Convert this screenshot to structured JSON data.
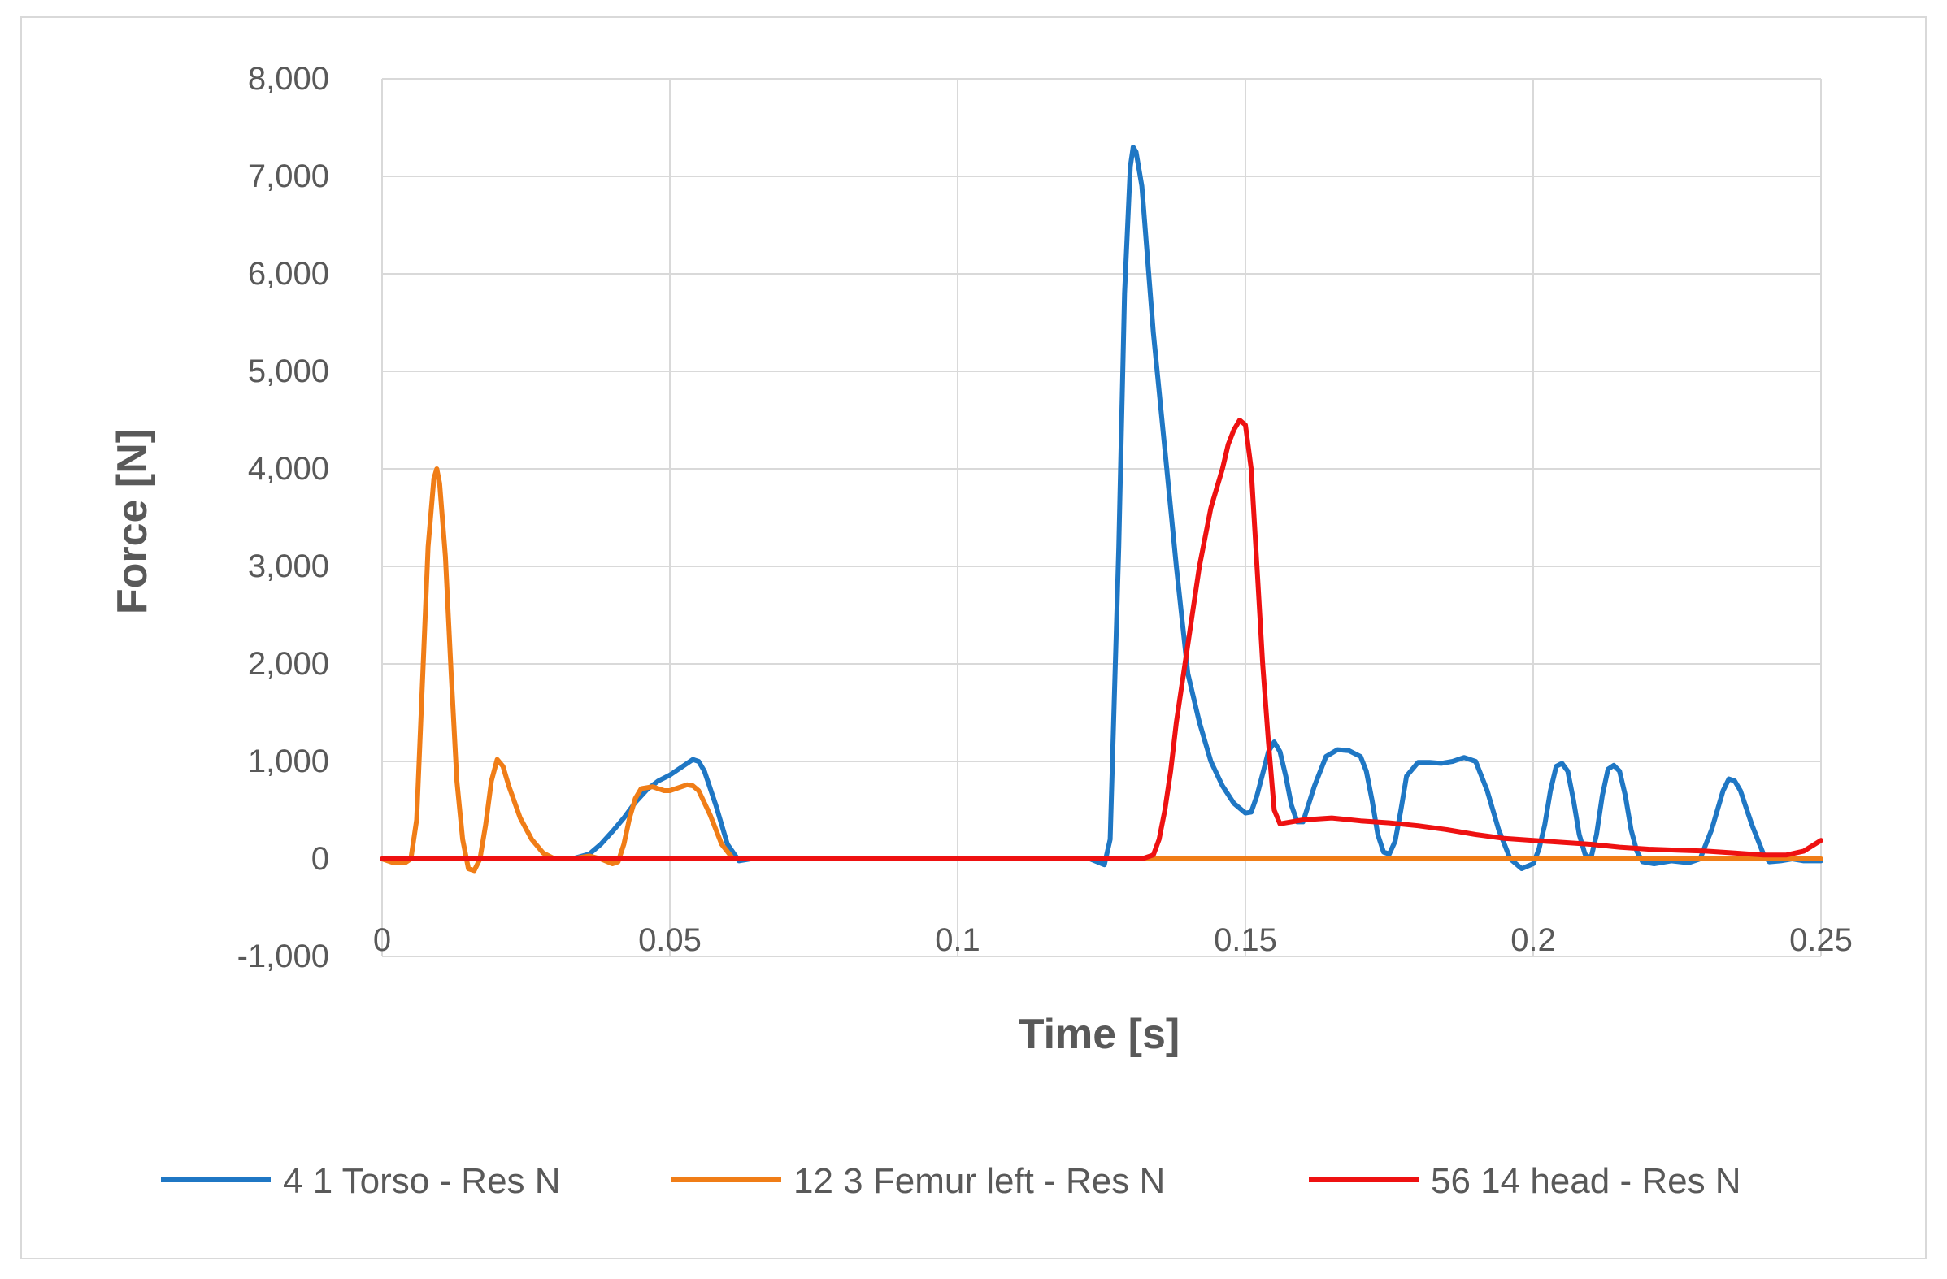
{
  "chart_data": {
    "type": "line",
    "xlabel": "Time [s]",
    "ylabel": "Force [N]",
    "xlim": [
      0,
      0.25
    ],
    "ylim": [
      -1000,
      8000
    ],
    "x_ticks": [
      0,
      0.05,
      0.1,
      0.15,
      0.2,
      0.25
    ],
    "x_tick_labels": [
      "0",
      "0.05",
      "0.1",
      "0.15",
      "0.2",
      "0.25"
    ],
    "y_ticks": [
      -1000,
      0,
      1000,
      2000,
      3000,
      4000,
      5000,
      6000,
      7000,
      8000
    ],
    "y_tick_labels": [
      "-1,000",
      "0",
      "1,000",
      "2,000",
      "3,000",
      "4,000",
      "5,000",
      "6,000",
      "7,000",
      "8,000"
    ],
    "grid": true,
    "legend_position": "bottom",
    "series": [
      {
        "name": "4 1 Torso - Res N",
        "color": "#1f77c4",
        "points": [
          [
            0,
            0
          ],
          [
            0.033,
            0
          ],
          [
            0.036,
            50
          ],
          [
            0.038,
            150
          ],
          [
            0.04,
            280
          ],
          [
            0.042,
            420
          ],
          [
            0.044,
            580
          ],
          [
            0.046,
            710
          ],
          [
            0.048,
            800
          ],
          [
            0.05,
            860
          ],
          [
            0.052,
            940
          ],
          [
            0.054,
            1020
          ],
          [
            0.055,
            1000
          ],
          [
            0.056,
            900
          ],
          [
            0.058,
            550
          ],
          [
            0.06,
            150
          ],
          [
            0.062,
            -20
          ],
          [
            0.064,
            0
          ],
          [
            0.123,
            0
          ],
          [
            0.1255,
            -60
          ],
          [
            0.1265,
            200
          ],
          [
            0.128,
            3200
          ],
          [
            0.129,
            5800
          ],
          [
            0.13,
            7100
          ],
          [
            0.1305,
            7300
          ],
          [
            0.131,
            7250
          ],
          [
            0.132,
            6900
          ],
          [
            0.134,
            5400
          ],
          [
            0.136,
            4200
          ],
          [
            0.138,
            3000
          ],
          [
            0.14,
            1900
          ],
          [
            0.142,
            1400
          ],
          [
            0.144,
            1000
          ],
          [
            0.146,
            750
          ],
          [
            0.148,
            570
          ],
          [
            0.15,
            470
          ],
          [
            0.151,
            480
          ],
          [
            0.152,
            650
          ],
          [
            0.154,
            1100
          ],
          [
            0.155,
            1200
          ],
          [
            0.156,
            1100
          ],
          [
            0.157,
            850
          ],
          [
            0.158,
            550
          ],
          [
            0.159,
            380
          ],
          [
            0.16,
            380
          ],
          [
            0.162,
            750
          ],
          [
            0.164,
            1050
          ],
          [
            0.166,
            1120
          ],
          [
            0.168,
            1110
          ],
          [
            0.17,
            1050
          ],
          [
            0.171,
            900
          ],
          [
            0.172,
            600
          ],
          [
            0.173,
            250
          ],
          [
            0.174,
            70
          ],
          [
            0.175,
            50
          ],
          [
            0.176,
            180
          ],
          [
            0.177,
            500
          ],
          [
            0.178,
            850
          ],
          [
            0.18,
            990
          ],
          [
            0.182,
            990
          ],
          [
            0.184,
            980
          ],
          [
            0.186,
            1000
          ],
          [
            0.188,
            1040
          ],
          [
            0.19,
            1000
          ],
          [
            0.192,
            700
          ],
          [
            0.194,
            300
          ],
          [
            0.196,
            0
          ],
          [
            0.198,
            -100
          ],
          [
            0.2,
            -50
          ],
          [
            0.201,
            100
          ],
          [
            0.202,
            350
          ],
          [
            0.203,
            700
          ],
          [
            0.204,
            950
          ],
          [
            0.205,
            980
          ],
          [
            0.206,
            900
          ],
          [
            0.207,
            600
          ],
          [
            0.208,
            250
          ],
          [
            0.209,
            50
          ],
          [
            0.21,
            0
          ],
          [
            0.211,
            250
          ],
          [
            0.212,
            650
          ],
          [
            0.213,
            920
          ],
          [
            0.214,
            960
          ],
          [
            0.215,
            900
          ],
          [
            0.216,
            650
          ],
          [
            0.217,
            300
          ],
          [
            0.218,
            80
          ],
          [
            0.219,
            -30
          ],
          [
            0.221,
            -50
          ],
          [
            0.224,
            -20
          ],
          [
            0.227,
            -40
          ],
          [
            0.229,
            0
          ],
          [
            0.231,
            300
          ],
          [
            0.233,
            700
          ],
          [
            0.234,
            820
          ],
          [
            0.235,
            800
          ],
          [
            0.236,
            700
          ],
          [
            0.238,
            350
          ],
          [
            0.24,
            50
          ],
          [
            0.241,
            -30
          ],
          [
            0.243,
            -20
          ],
          [
            0.245,
            0
          ],
          [
            0.247,
            -20
          ],
          [
            0.25,
            -20
          ]
        ]
      },
      {
        "name": "12 3 Femur left - Res N",
        "color": "#f07d17",
        "points": [
          [
            0,
            0
          ],
          [
            0.002,
            -40
          ],
          [
            0.004,
            -40
          ],
          [
            0.005,
            0
          ],
          [
            0.006,
            400
          ],
          [
            0.007,
            1800
          ],
          [
            0.008,
            3200
          ],
          [
            0.009,
            3900
          ],
          [
            0.0095,
            4000
          ],
          [
            0.01,
            3850
          ],
          [
            0.011,
            3100
          ],
          [
            0.012,
            1900
          ],
          [
            0.013,
            800
          ],
          [
            0.014,
            200
          ],
          [
            0.015,
            -100
          ],
          [
            0.016,
            -120
          ],
          [
            0.017,
            0
          ],
          [
            0.018,
            350
          ],
          [
            0.019,
            800
          ],
          [
            0.02,
            1020
          ],
          [
            0.021,
            950
          ],
          [
            0.022,
            750
          ],
          [
            0.024,
            420
          ],
          [
            0.026,
            200
          ],
          [
            0.028,
            60
          ],
          [
            0.03,
            0
          ],
          [
            0.033,
            0
          ],
          [
            0.036,
            30
          ],
          [
            0.038,
            0
          ],
          [
            0.04,
            -50
          ],
          [
            0.041,
            -30
          ],
          [
            0.042,
            150
          ],
          [
            0.043,
            420
          ],
          [
            0.044,
            620
          ],
          [
            0.045,
            720
          ],
          [
            0.047,
            740
          ],
          [
            0.049,
            700
          ],
          [
            0.05,
            700
          ],
          [
            0.051,
            720
          ],
          [
            0.052,
            740
          ],
          [
            0.053,
            760
          ],
          [
            0.054,
            750
          ],
          [
            0.055,
            700
          ],
          [
            0.057,
            450
          ],
          [
            0.059,
            150
          ],
          [
            0.061,
            0
          ],
          [
            0.25,
            0
          ]
        ]
      },
      {
        "name": "56 14 head - Res N",
        "color": "#ee1111",
        "points": [
          [
            0,
            0
          ],
          [
            0.128,
            0
          ],
          [
            0.132,
            0
          ],
          [
            0.134,
            40
          ],
          [
            0.135,
            200
          ],
          [
            0.136,
            500
          ],
          [
            0.137,
            900
          ],
          [
            0.138,
            1400
          ],
          [
            0.14,
            2200
          ],
          [
            0.142,
            3000
          ],
          [
            0.144,
            3600
          ],
          [
            0.146,
            4000
          ],
          [
            0.147,
            4250
          ],
          [
            0.148,
            4400
          ],
          [
            0.149,
            4500
          ],
          [
            0.15,
            4450
          ],
          [
            0.151,
            4000
          ],
          [
            0.152,
            3000
          ],
          [
            0.153,
            2000
          ],
          [
            0.154,
            1200
          ],
          [
            0.155,
            500
          ],
          [
            0.156,
            360
          ],
          [
            0.16,
            400
          ],
          [
            0.165,
            420
          ],
          [
            0.17,
            390
          ],
          [
            0.175,
            370
          ],
          [
            0.18,
            340
          ],
          [
            0.185,
            300
          ],
          [
            0.19,
            250
          ],
          [
            0.195,
            210
          ],
          [
            0.2,
            190
          ],
          [
            0.205,
            170
          ],
          [
            0.21,
            150
          ],
          [
            0.215,
            120
          ],
          [
            0.22,
            100
          ],
          [
            0.225,
            90
          ],
          [
            0.23,
            80
          ],
          [
            0.235,
            60
          ],
          [
            0.24,
            40
          ],
          [
            0.244,
            40
          ],
          [
            0.247,
            80
          ],
          [
            0.25,
            190
          ]
        ]
      }
    ]
  }
}
